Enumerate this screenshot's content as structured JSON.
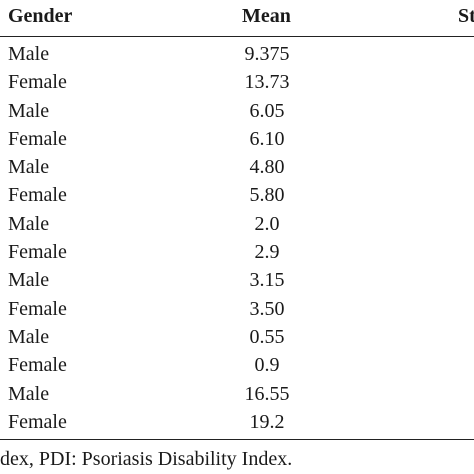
{
  "table": {
    "headers": {
      "gender": "Gender",
      "mean": "Mean",
      "partial": "St"
    },
    "rows": [
      {
        "gender": "Male",
        "mean": "9.375"
      },
      {
        "gender": "Female",
        "mean": "13.73"
      },
      {
        "gender": "Male",
        "mean": "6.05"
      },
      {
        "gender": "Female",
        "mean": "6.10"
      },
      {
        "gender": "Male",
        "mean": "4.80"
      },
      {
        "gender": "Female",
        "mean": "5.80"
      },
      {
        "gender": "Male",
        "mean": "2.0"
      },
      {
        "gender": "Female",
        "mean": "2.9"
      },
      {
        "gender": "Male",
        "mean": "3.15"
      },
      {
        "gender": "Female",
        "mean": "3.50"
      },
      {
        "gender": "Male",
        "mean": "0.55"
      },
      {
        "gender": "Female",
        "mean": "0.9"
      },
      {
        "gender": "Male",
        "mean": "16.55"
      },
      {
        "gender": "Female",
        "mean": "19.2"
      }
    ]
  },
  "footnote": "dex, PDI: Psoriasis Disability Index."
}
